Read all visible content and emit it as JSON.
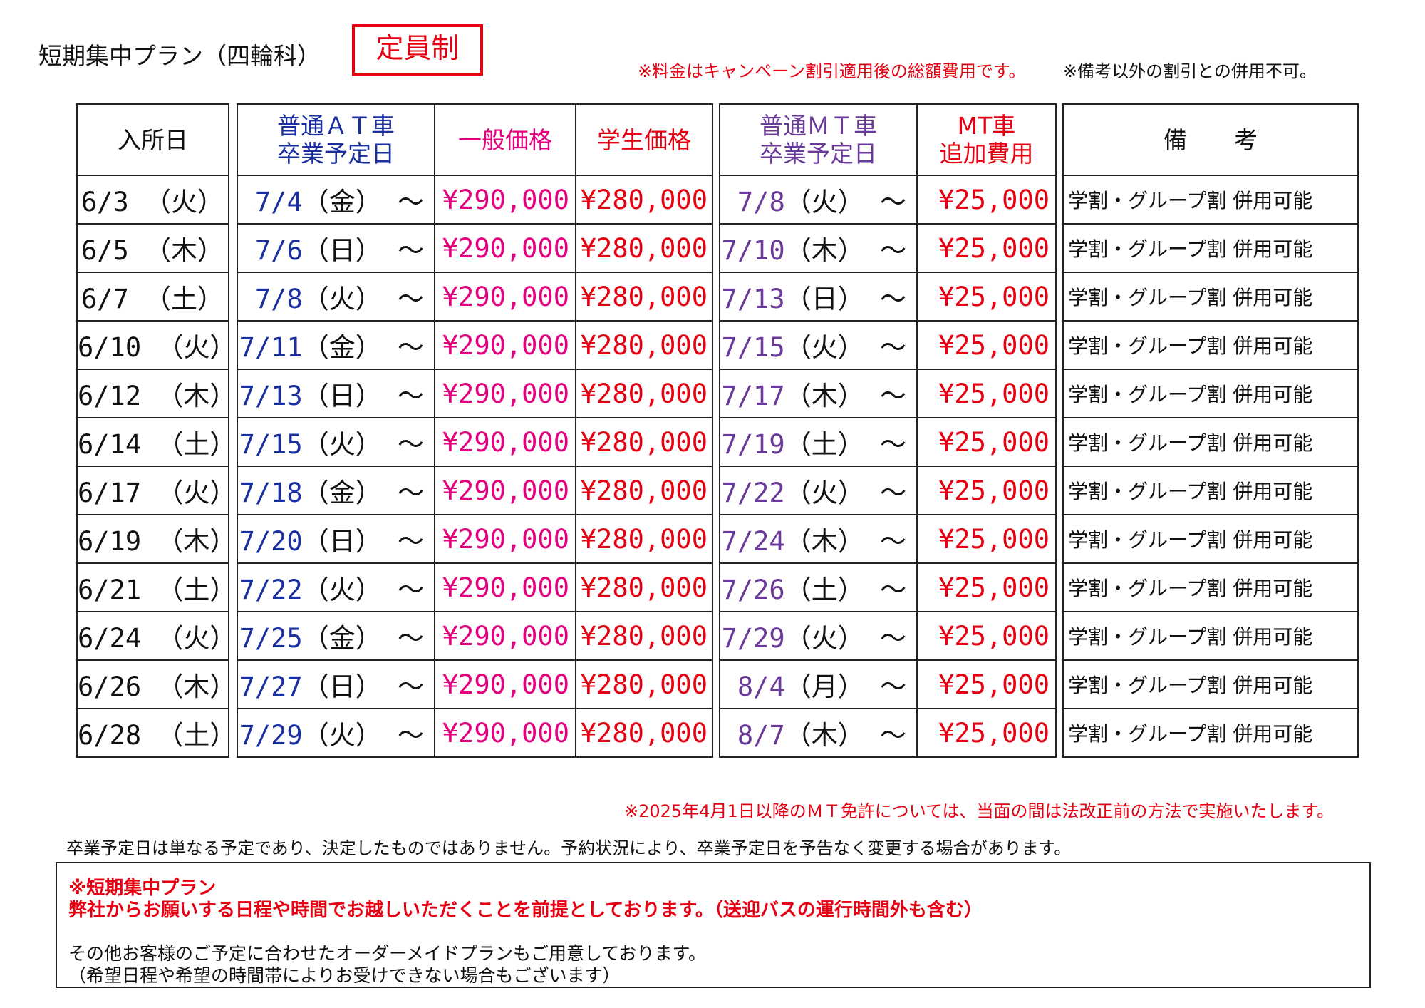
{
  "header": {
    "title": "短期集中プラン（四輪科）",
    "badge": "定員制",
    "note_price": "※料金はキャンペーン割引適用後の総額費用です。",
    "note_discount": "※備考以外の割引との併用不可。"
  },
  "columns": {
    "start_date": "入所日",
    "at_grad_line1": "普通ＡＴ車",
    "at_grad_line2": "卒業予定日",
    "general_price": "一般価格",
    "student_price": "学生価格",
    "mt_grad_line1": "普通ＭＴ車",
    "mt_grad_line2": "卒業予定日",
    "mt_fee_line1": "MT車",
    "mt_fee_line2": "追加費用",
    "remarks": "備　　考"
  },
  "rows": [
    {
      "start": "6/3 （火）",
      "at": "7/4",
      "at_wd": "（金） ～",
      "general": "¥290,000",
      "student": "¥280,000",
      "mt": "7/8",
      "mt_wd": "（火） ～",
      "mt_fee": "¥25,000",
      "remark": "学割・グループ割 併用可能"
    },
    {
      "start": "6/5 （木）",
      "at": "7/6",
      "at_wd": "（日） ～",
      "general": "¥290,000",
      "student": "¥280,000",
      "mt": "7/10",
      "mt_wd": "（木） ～",
      "mt_fee": "¥25,000",
      "remark": "学割・グループ割 併用可能"
    },
    {
      "start": "6/7 （土）",
      "at": "7/8",
      "at_wd": "（火） ～",
      "general": "¥290,000",
      "student": "¥280,000",
      "mt": "7/13",
      "mt_wd": "（日） ～",
      "mt_fee": "¥25,000",
      "remark": "学割・グループ割 併用可能"
    },
    {
      "start": "6/10 （火）",
      "at": "7/11",
      "at_wd": "（金） ～",
      "general": "¥290,000",
      "student": "¥280,000",
      "mt": "7/15",
      "mt_wd": "（火） ～",
      "mt_fee": "¥25,000",
      "remark": "学割・グループ割 併用可能"
    },
    {
      "start": "6/12 （木）",
      "at": "7/13",
      "at_wd": "（日） ～",
      "general": "¥290,000",
      "student": "¥280,000",
      "mt": "7/17",
      "mt_wd": "（木） ～",
      "mt_fee": "¥25,000",
      "remark": "学割・グループ割 併用可能"
    },
    {
      "start": "6/14 （土）",
      "at": "7/15",
      "at_wd": "（火） ～",
      "general": "¥290,000",
      "student": "¥280,000",
      "mt": "7/19",
      "mt_wd": "（土） ～",
      "mt_fee": "¥25,000",
      "remark": "学割・グループ割 併用可能"
    },
    {
      "start": "6/17 （火）",
      "at": "7/18",
      "at_wd": "（金） ～",
      "general": "¥290,000",
      "student": "¥280,000",
      "mt": "7/22",
      "mt_wd": "（火） ～",
      "mt_fee": "¥25,000",
      "remark": "学割・グループ割 併用可能"
    },
    {
      "start": "6/19 （木）",
      "at": "7/20",
      "at_wd": "（日） ～",
      "general": "¥290,000",
      "student": "¥280,000",
      "mt": "7/24",
      "mt_wd": "（木） ～",
      "mt_fee": "¥25,000",
      "remark": "学割・グループ割 併用可能"
    },
    {
      "start": "6/21 （土）",
      "at": "7/22",
      "at_wd": "（火） ～",
      "general": "¥290,000",
      "student": "¥280,000",
      "mt": "7/26",
      "mt_wd": "（土） ～",
      "mt_fee": "¥25,000",
      "remark": "学割・グループ割 併用可能"
    },
    {
      "start": "6/24 （火）",
      "at": "7/25",
      "at_wd": "（金） ～",
      "general": "¥290,000",
      "student": "¥280,000",
      "mt": "7/29",
      "mt_wd": "（火） ～",
      "mt_fee": "¥25,000",
      "remark": "学割・グループ割 併用可能"
    },
    {
      "start": "6/26 （木）",
      "at": "7/27",
      "at_wd": "（日） ～",
      "general": "¥290,000",
      "student": "¥280,000",
      "mt": "8/4",
      "mt_wd": "（月） ～",
      "mt_fee": "¥25,000",
      "remark": "学割・グループ割 併用可能"
    },
    {
      "start": "6/28 （土）",
      "at": "7/29",
      "at_wd": "（火） ～",
      "general": "¥290,000",
      "student": "¥280,000",
      "mt": "8/7",
      "mt_wd": "（木） ～",
      "mt_fee": "¥25,000",
      "remark": "学割・グループ割 併用可能"
    }
  ],
  "footer": {
    "mt_note": "※2025年4月1日以降のＭＴ免許については、当面の間は法改正前の方法で実施いたします。",
    "disclaimer": "卒業予定日は単なる予定であり、決定したものではありません。予約状況により、卒業予定日を予告なく変更する場合があります。",
    "box_line1": "※短期集中プラン",
    "box_line2": "弊社からお願いする日程や時間でお越しいただくことを前提としております。（送迎バスの運行時間外も含む）",
    "box_line3": "その他お客様のご予定に合わせたオーダーメイドプランもご用意しております。",
    "box_line4": "（希望日程や希望の時間帯によりお受けできない場合もございます）"
  },
  "colors": {
    "red": "#e60012",
    "magenta": "#e4007f",
    "blue": "#1a2fa0",
    "purple": "#6a3a9a"
  }
}
